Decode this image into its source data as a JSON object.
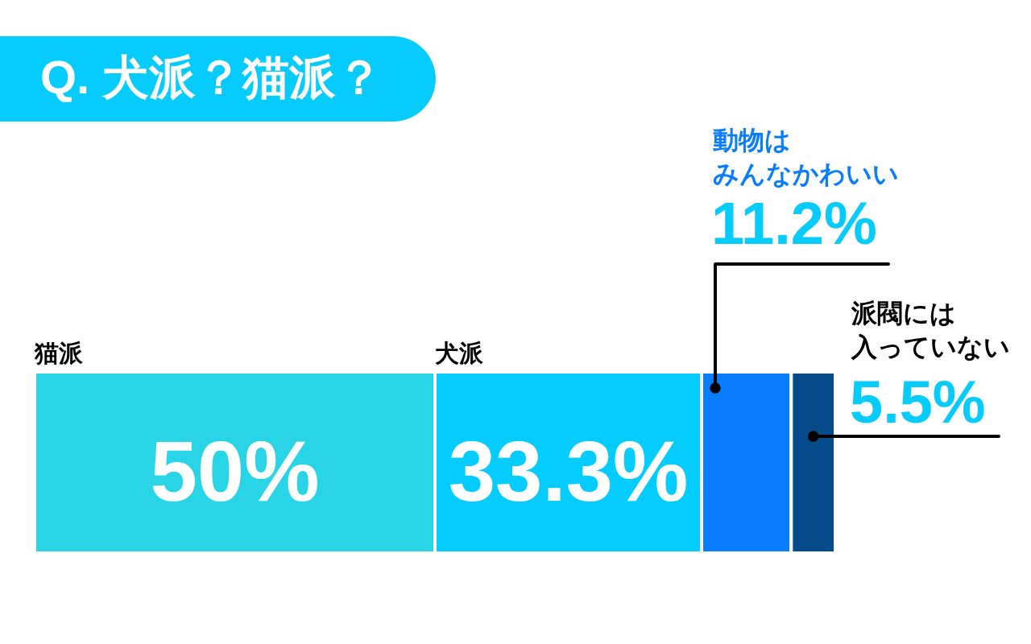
{
  "chart_data": {
    "type": "bar",
    "orientation": "horizontal",
    "stacked": true,
    "title": "Q. 犬派？猫派？",
    "categories": [
      null
    ],
    "series": [
      {
        "name": "猫派",
        "color": "#29d4e6",
        "values": [
          50
        ],
        "value_labels": [
          "50%"
        ]
      },
      {
        "name": "犬派",
        "color": "#05ccfe",
        "values": [
          33.3
        ],
        "value_labels": [
          "33.3%"
        ]
      },
      {
        "name": "動物はみんなかわいい",
        "color": "#0a7dfe",
        "values": [
          11.2
        ],
        "value_labels": [
          "11.2%"
        ]
      },
      {
        "name": "派閥には入っていない",
        "color": "#054a8a",
        "values": [
          5.5
        ],
        "value_labels": [
          "5.5%"
        ]
      }
    ],
    "tick_labels": false
  }
}
